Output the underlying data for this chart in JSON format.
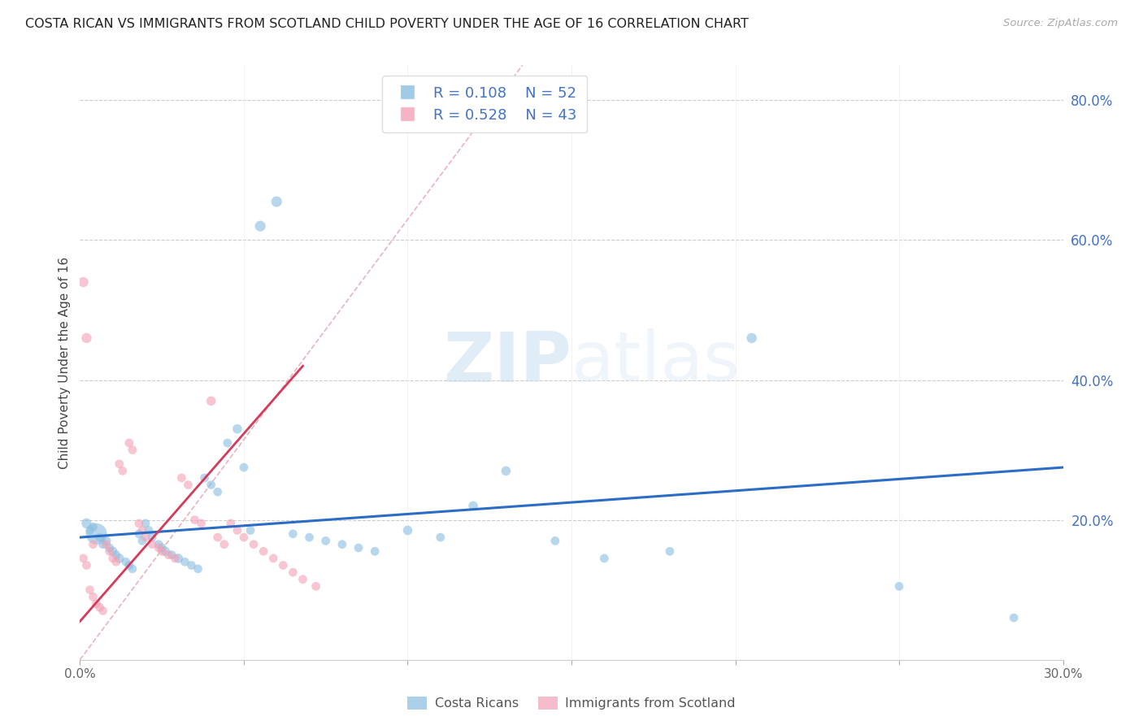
{
  "title": "COSTA RICAN VS IMMIGRANTS FROM SCOTLAND CHILD POVERTY UNDER THE AGE OF 16 CORRELATION CHART",
  "source": "Source: ZipAtlas.com",
  "ylabel": "Child Poverty Under the Age of 16",
  "xlim": [
    0.0,
    0.3
  ],
  "ylim": [
    0.0,
    0.85
  ],
  "blue_color": "#89bde0",
  "pink_color": "#f4a0b5",
  "blue_line_color": "#2b6cc4",
  "pink_line_color": "#d63a5a",
  "ref_line_color": "#e0b0b8",
  "legend_r_blue": "0.108",
  "legend_n_blue": "52",
  "legend_r_pink": "0.528",
  "legend_n_pink": "43",
  "legend_label_blue": "Costa Ricans",
  "legend_label_pink": "Immigrants from Scotland",
  "watermark_zip": "ZIP",
  "watermark_atlas": "atlas",
  "blue_scatter_x": [
    0.002,
    0.003,
    0.004,
    0.005,
    0.006,
    0.007,
    0.008,
    0.009,
    0.01,
    0.011,
    0.012,
    0.014,
    0.015,
    0.016,
    0.018,
    0.019,
    0.02,
    0.021,
    0.022,
    0.024,
    0.025,
    0.026,
    0.028,
    0.03,
    0.032,
    0.034,
    0.036,
    0.038,
    0.04,
    0.042,
    0.045,
    0.048,
    0.05,
    0.052,
    0.055,
    0.06,
    0.065,
    0.07,
    0.075,
    0.08,
    0.085,
    0.09,
    0.1,
    0.11,
    0.12,
    0.13,
    0.145,
    0.16,
    0.18,
    0.205,
    0.25,
    0.285
  ],
  "blue_scatter_y": [
    0.195,
    0.185,
    0.19,
    0.18,
    0.175,
    0.165,
    0.17,
    0.16,
    0.155,
    0.15,
    0.145,
    0.14,
    0.135,
    0.13,
    0.18,
    0.17,
    0.195,
    0.185,
    0.175,
    0.165,
    0.16,
    0.155,
    0.15,
    0.145,
    0.14,
    0.135,
    0.13,
    0.26,
    0.25,
    0.24,
    0.31,
    0.33,
    0.275,
    0.185,
    0.62,
    0.655,
    0.18,
    0.175,
    0.17,
    0.165,
    0.16,
    0.155,
    0.185,
    0.175,
    0.22,
    0.27,
    0.17,
    0.145,
    0.155,
    0.46,
    0.105,
    0.06
  ],
  "blue_scatter_sizes": [
    80,
    60,
    60,
    350,
    60,
    60,
    70,
    60,
    70,
    60,
    70,
    60,
    60,
    60,
    60,
    60,
    60,
    60,
    60,
    60,
    60,
    70,
    60,
    70,
    60,
    60,
    60,
    60,
    60,
    60,
    60,
    70,
    60,
    60,
    90,
    90,
    60,
    60,
    60,
    60,
    60,
    60,
    70,
    60,
    70,
    70,
    60,
    60,
    60,
    80,
    60,
    60
  ],
  "pink_scatter_x": [
    0.001,
    0.002,
    0.003,
    0.004,
    0.005,
    0.006,
    0.007,
    0.008,
    0.009,
    0.01,
    0.011,
    0.012,
    0.013,
    0.015,
    0.016,
    0.018,
    0.019,
    0.02,
    0.022,
    0.024,
    0.025,
    0.027,
    0.029,
    0.031,
    0.033,
    0.035,
    0.037,
    0.04,
    0.042,
    0.044,
    0.046,
    0.048,
    0.05,
    0.053,
    0.056,
    0.059,
    0.062,
    0.065,
    0.068,
    0.072,
    0.001,
    0.002,
    0.004
  ],
  "pink_scatter_y": [
    0.145,
    0.135,
    0.1,
    0.09,
    0.08,
    0.075,
    0.07,
    0.165,
    0.155,
    0.145,
    0.14,
    0.28,
    0.27,
    0.31,
    0.3,
    0.195,
    0.185,
    0.175,
    0.165,
    0.16,
    0.155,
    0.15,
    0.145,
    0.26,
    0.25,
    0.2,
    0.195,
    0.37,
    0.175,
    0.165,
    0.195,
    0.185,
    0.175,
    0.165,
    0.155,
    0.145,
    0.135,
    0.125,
    0.115,
    0.105,
    0.54,
    0.46,
    0.165
  ],
  "pink_scatter_sizes": [
    60,
    60,
    60,
    60,
    60,
    60,
    60,
    60,
    60,
    60,
    60,
    60,
    60,
    60,
    60,
    60,
    60,
    60,
    60,
    60,
    60,
    60,
    60,
    60,
    60,
    60,
    60,
    70,
    60,
    60,
    60,
    60,
    60,
    60,
    60,
    60,
    60,
    60,
    60,
    60,
    80,
    80,
    60
  ],
  "blue_trend_x": [
    0.0,
    0.3
  ],
  "blue_trend_y": [
    0.175,
    0.275
  ],
  "pink_trend_x": [
    0.0,
    0.068
  ],
  "pink_trend_y": [
    0.055,
    0.42
  ],
  "ref_line_x": [
    0.0,
    0.135
  ],
  "ref_line_y": [
    0.0,
    0.85
  ]
}
